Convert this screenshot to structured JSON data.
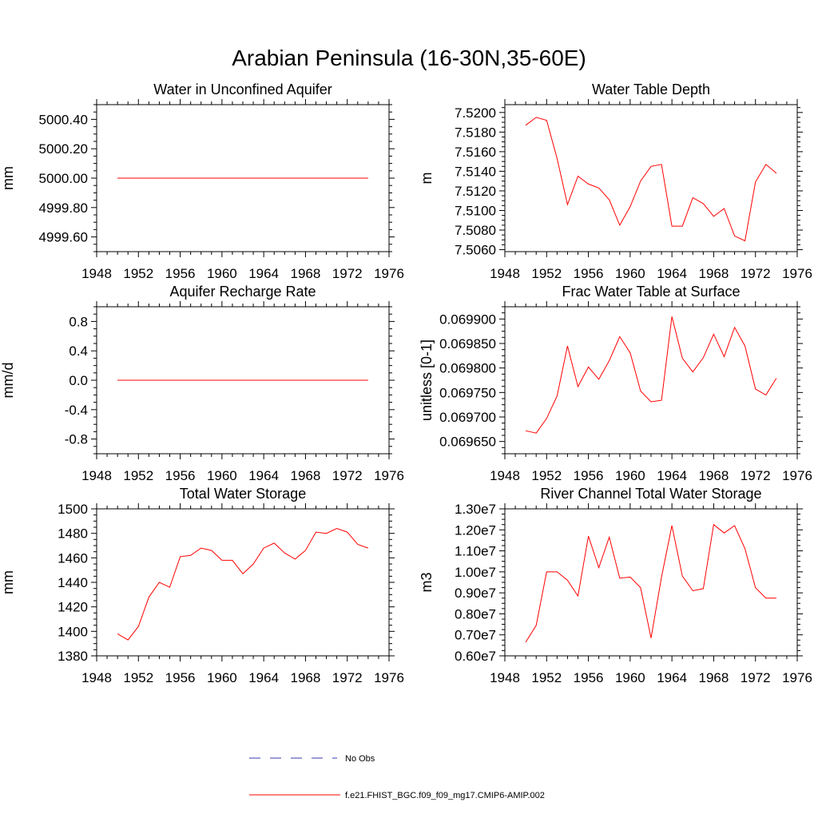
{
  "figure_title": "Arabian Peninsula (16-30N,35-60E)",
  "colors": {
    "model": "#ff0000",
    "obs": "#3a3ab0",
    "axis": "#000000"
  },
  "legend": [
    {
      "label": "No Obs",
      "style": "dashed",
      "color": "#3a3ab0"
    },
    {
      "label": "f.e21.FHIST_BGC.f09_f09_mg17.CMIP6-AMIP.002",
      "style": "solid",
      "color": "#ff0000"
    }
  ],
  "chart_data": [
    {
      "type": "line",
      "title": "Water in Unconfined Aquifer",
      "ylabel": "mm",
      "xlim": [
        1948,
        1976
      ],
      "ylim": [
        4999.5,
        5000.5
      ],
      "xticks": [
        1948,
        1952,
        1956,
        1960,
        1964,
        1968,
        1972,
        1976
      ],
      "yticks": [
        4999.6,
        4999.8,
        5000.0,
        5000.2,
        5000.4
      ],
      "ytick_labels": [
        "4999.60",
        "4999.80",
        "5000.00",
        "5000.20",
        "5000.40"
      ],
      "x": [
        1950,
        1951,
        1952,
        1953,
        1954,
        1955,
        1956,
        1957,
        1958,
        1959,
        1960,
        1961,
        1962,
        1963,
        1964,
        1965,
        1966,
        1967,
        1968,
        1969,
        1970,
        1971,
        1972,
        1973,
        1974
      ],
      "series": [
        {
          "name": "f.e21.FHIST_BGC.f09_f09_mg17.CMIP6-AMIP.002",
          "values": [
            5000,
            5000,
            5000,
            5000,
            5000,
            5000,
            5000,
            5000,
            5000,
            5000,
            5000,
            5000,
            5000,
            5000,
            5000,
            5000,
            5000,
            5000,
            5000,
            5000,
            5000,
            5000,
            5000,
            5000,
            5000
          ]
        }
      ]
    },
    {
      "type": "line",
      "title": "Water Table Depth",
      "ylabel": "m",
      "xlim": [
        1948,
        1976
      ],
      "ylim": [
        7.5058,
        7.5208
      ],
      "xticks": [
        1948,
        1952,
        1956,
        1960,
        1964,
        1968,
        1972,
        1976
      ],
      "yticks": [
        7.506,
        7.508,
        7.51,
        7.512,
        7.514,
        7.516,
        7.518,
        7.52
      ],
      "ytick_labels": [
        "7.5060",
        "7.5080",
        "7.5100",
        "7.5120",
        "7.5140",
        "7.5160",
        "7.5180",
        "7.5200"
      ],
      "x": [
        1950,
        1951,
        1952,
        1953,
        1954,
        1955,
        1956,
        1957,
        1958,
        1959,
        1960,
        1961,
        1962,
        1963,
        1964,
        1965,
        1966,
        1967,
        1968,
        1969,
        1970,
        1971,
        1972,
        1973,
        1974
      ],
      "series": [
        {
          "name": "f.e21.FHIST_BGC.f09_f09_mg17.CMIP6-AMIP.002",
          "values": [
            7.5187,
            7.5195,
            7.5192,
            7.5153,
            7.5106,
            7.5135,
            7.5127,
            7.5123,
            7.5111,
            7.5085,
            7.5104,
            7.513,
            7.5145,
            7.5147,
            7.5084,
            7.5084,
            7.5113,
            7.5107,
            7.5094,
            7.5102,
            7.5074,
            7.5069,
            7.5129,
            7.5147,
            7.5138
          ]
        }
      ]
    },
    {
      "type": "line",
      "title": "Aquifer Recharge Rate",
      "ylabel": "mm/d",
      "xlim": [
        1948,
        1976
      ],
      "ylim": [
        -1.0,
        1.0
      ],
      "xticks": [
        1948,
        1952,
        1956,
        1960,
        1964,
        1968,
        1972,
        1976
      ],
      "yticks": [
        -0.8,
        -0.4,
        0.0,
        0.4,
        0.8
      ],
      "ytick_labels": [
        "-0.8",
        "-0.4",
        "0.0",
        "0.4",
        "0.8"
      ],
      "x": [
        1950,
        1951,
        1952,
        1953,
        1954,
        1955,
        1956,
        1957,
        1958,
        1959,
        1960,
        1961,
        1962,
        1963,
        1964,
        1965,
        1966,
        1967,
        1968,
        1969,
        1970,
        1971,
        1972,
        1973,
        1974
      ],
      "series": [
        {
          "name": "f.e21.FHIST_BGC.f09_f09_mg17.CMIP6-AMIP.002",
          "values": [
            0,
            0,
            0,
            0,
            0,
            0,
            0,
            0,
            0,
            0,
            0,
            0,
            0,
            0,
            0,
            0,
            0,
            0,
            0,
            0,
            0,
            0,
            0,
            0,
            0
          ]
        }
      ]
    },
    {
      "type": "line",
      "title": "Frac Water Table at Surface",
      "ylabel": "unitless [0-1]",
      "xlim": [
        1948,
        1976
      ],
      "ylim": [
        0.069625,
        0.069925
      ],
      "xticks": [
        1948,
        1952,
        1956,
        1960,
        1964,
        1968,
        1972,
        1976
      ],
      "yticks": [
        0.06965,
        0.0697,
        0.06975,
        0.0698,
        0.06985,
        0.0699
      ],
      "ytick_labels": [
        "0.069650",
        "0.069700",
        "0.069750",
        "0.069800",
        "0.069850",
        "0.069900"
      ],
      "x": [
        1950,
        1951,
        1952,
        1953,
        1954,
        1955,
        1956,
        1957,
        1958,
        1959,
        1960,
        1961,
        1962,
        1963,
        1964,
        1965,
        1966,
        1967,
        1968,
        1969,
        1970,
        1971,
        1972,
        1973,
        1974
      ],
      "series": [
        {
          "name": "f.e21.FHIST_BGC.f09_f09_mg17.CMIP6-AMIP.002",
          "values": [
            0.069672,
            0.069667,
            0.069697,
            0.069743,
            0.069845,
            0.069762,
            0.069802,
            0.069777,
            0.069815,
            0.069864,
            0.069831,
            0.069753,
            0.069731,
            0.069734,
            0.069905,
            0.06982,
            0.069792,
            0.069821,
            0.069869,
            0.069823,
            0.069883,
            0.069845,
            0.069757,
            0.069745,
            0.069779
          ]
        }
      ]
    },
    {
      "type": "line",
      "title": "Total Water Storage",
      "ylabel": "mm",
      "xlim": [
        1948,
        1976
      ],
      "ylim": [
        1380,
        1500
      ],
      "xticks": [
        1948,
        1952,
        1956,
        1960,
        1964,
        1968,
        1972,
        1976
      ],
      "yticks": [
        1380,
        1400,
        1420,
        1440,
        1460,
        1480,
        1500
      ],
      "ytick_labels": [
        "1380",
        "1400",
        "1420",
        "1440",
        "1460",
        "1480",
        "1500"
      ],
      "x": [
        1950,
        1951,
        1952,
        1953,
        1954,
        1955,
        1956,
        1957,
        1958,
        1959,
        1960,
        1961,
        1962,
        1963,
        1964,
        1965,
        1966,
        1967,
        1968,
        1969,
        1970,
        1971,
        1972,
        1973,
        1974
      ],
      "series": [
        {
          "name": "f.e21.FHIST_BGC.f09_f09_mg17.CMIP6-AMIP.002",
          "values": [
            1398,
            1393,
            1404,
            1428,
            1440,
            1436,
            1461,
            1462,
            1468,
            1466,
            1458,
            1458,
            1447,
            1455,
            1468,
            1472,
            1464,
            1459,
            1466,
            1481,
            1480,
            1484,
            1481,
            1471,
            1468
          ]
        }
      ]
    },
    {
      "type": "line",
      "title": "River Channel Total Water Storage",
      "ylabel": "m3",
      "xlim": [
        1948,
        1976
      ],
      "ylim": [
        6000000,
        13000000
      ],
      "xticks": [
        1948,
        1952,
        1956,
        1960,
        1964,
        1968,
        1972,
        1976
      ],
      "yticks": [
        6000000,
        7000000,
        8000000,
        9000000,
        10000000,
        11000000,
        12000000,
        13000000
      ],
      "ytick_labels": [
        "0.60e7",
        "0.70e7",
        "0.80e7",
        "0.90e7",
        "1.00e7",
        "1.10e7",
        "1.20e7",
        "1.30e7"
      ],
      "x": [
        1950,
        1951,
        1952,
        1953,
        1954,
        1955,
        1956,
        1957,
        1958,
        1959,
        1960,
        1961,
        1962,
        1963,
        1964,
        1965,
        1966,
        1967,
        1968,
        1969,
        1970,
        1971,
        1972,
        1973,
        1974
      ],
      "series": [
        {
          "name": "f.e21.FHIST_BGC.f09_f09_mg17.CMIP6-AMIP.002",
          "values": [
            6650000,
            7450000,
            10000000,
            10000000,
            9600000,
            8850000,
            11700000,
            10200000,
            11650000,
            9700000,
            9750000,
            9250000,
            6850000,
            9750000,
            12200000,
            9800000,
            9100000,
            9200000,
            12250000,
            11850000,
            12200000,
            11100000,
            9250000,
            8750000,
            8750000
          ]
        }
      ]
    }
  ]
}
